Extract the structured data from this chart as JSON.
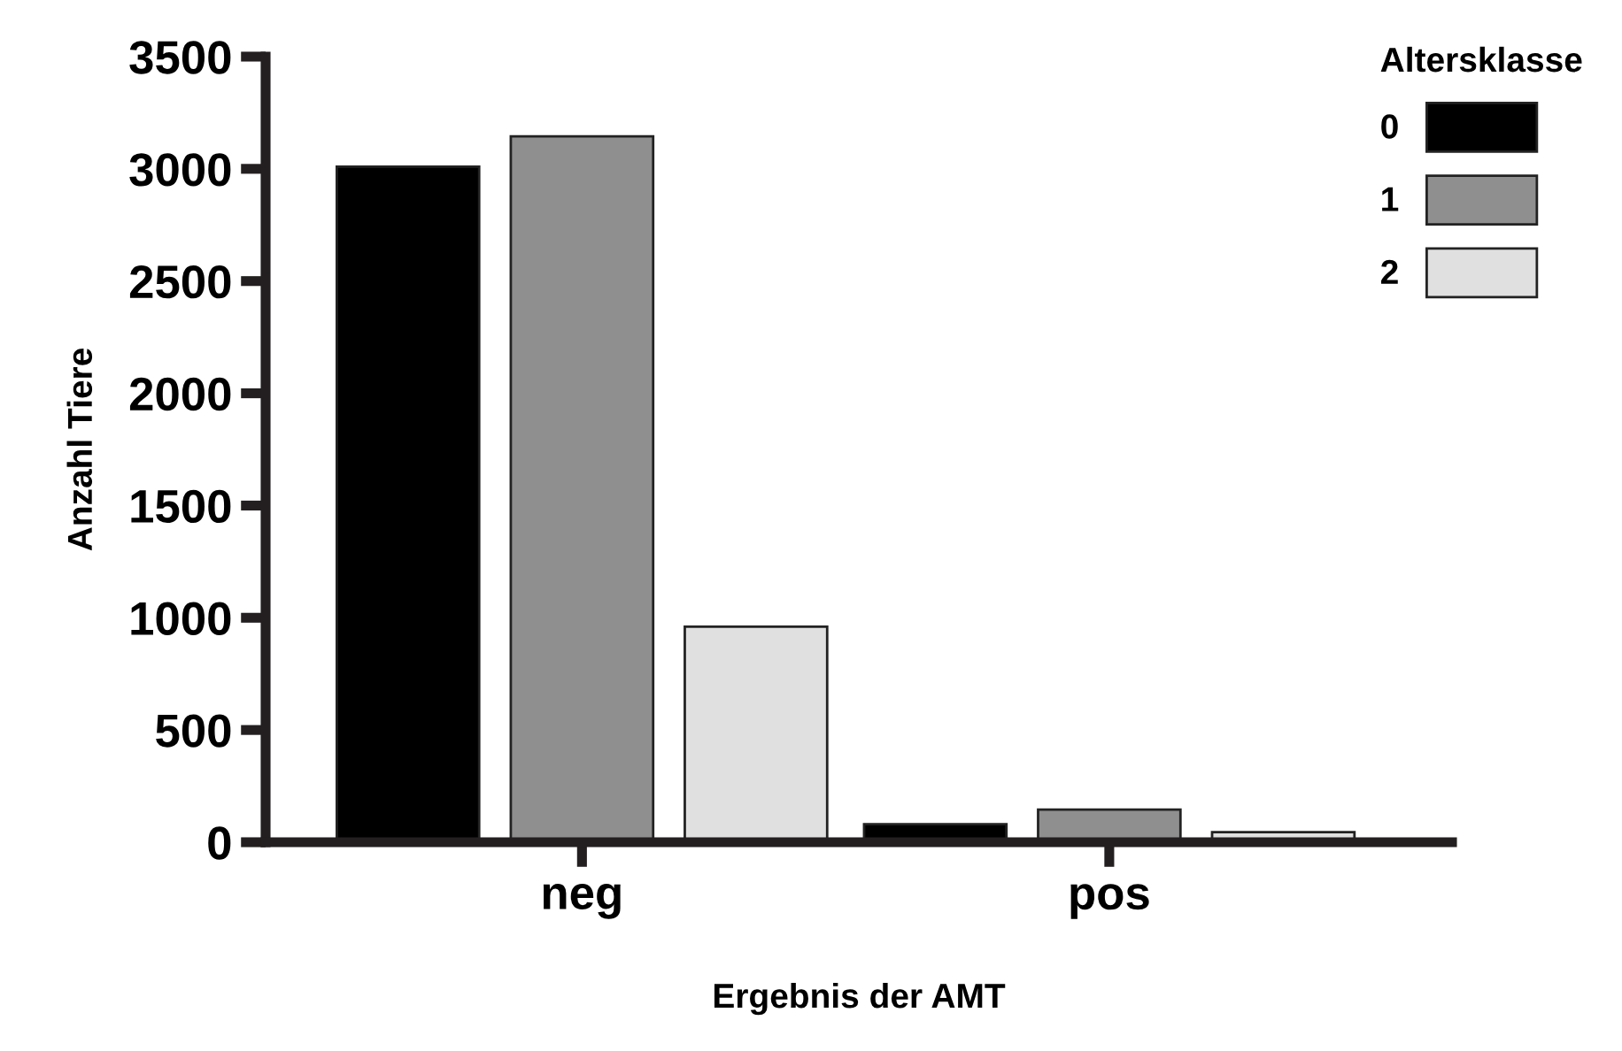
{
  "chart_data": {
    "type": "bar",
    "xlabel": "Ergebnis der AMT",
    "ylabel": "Anzahl Tiere",
    "legend_title": "Altersklasse",
    "categories": [
      "neg",
      "pos"
    ],
    "series": [
      {
        "name": "0",
        "color": "#000000",
        "values": [
          3010,
          80
        ]
      },
      {
        "name": "1",
        "color": "#8f8f8f",
        "values": [
          3145,
          145
        ]
      },
      {
        "name": "2",
        "color": "#e0e0e0",
        "values": [
          960,
          45
        ]
      }
    ],
    "ylim": [
      0,
      3500
    ],
    "yticks": [
      0,
      500,
      1000,
      1500,
      2000,
      2500,
      3000,
      3500
    ],
    "grid": false,
    "legend": "top right"
  }
}
